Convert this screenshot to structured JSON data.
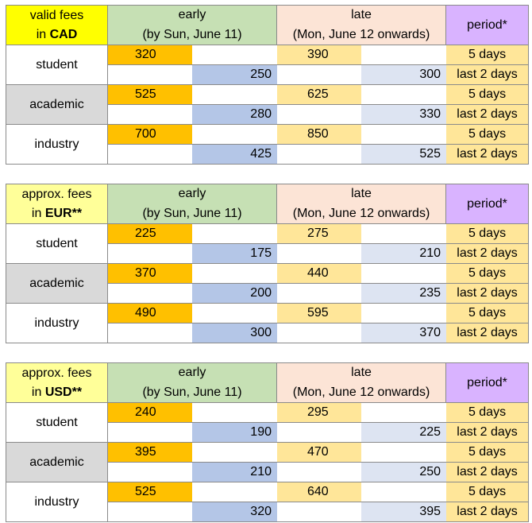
{
  "tables": [
    {
      "currency_line1": "valid fees",
      "currency_prefix": "in",
      "currency": "CAD",
      "early_label": "early",
      "early_sub": "(by Sun, June 11)",
      "late_label": "late",
      "late_sub": "(Mon, June 12 onwards)",
      "period_label": "period*",
      "rows": [
        {
          "category": "student",
          "early_5": "320",
          "early_2": "250",
          "late_5": "390",
          "late_2": "300",
          "period_5": "5 days",
          "period_2": "last 2 days"
        },
        {
          "category": "academic",
          "early_5": "525",
          "early_2": "280",
          "late_5": "625",
          "late_2": "330",
          "period_5": "5 days",
          "period_2": "last 2 days"
        },
        {
          "category": "industry",
          "early_5": "700",
          "early_2": "425",
          "late_5": "850",
          "late_2": "525",
          "period_5": "5 days",
          "period_2": "last 2 days"
        }
      ]
    },
    {
      "currency_line1": "approx. fees",
      "currency_prefix": "in",
      "currency": "EUR**",
      "early_label": "early",
      "early_sub": "(by Sun, June 11)",
      "late_label": "late",
      "late_sub": "(Mon, June 12 onwards)",
      "period_label": "period*",
      "rows": [
        {
          "category": "student",
          "early_5": "225",
          "early_2": "175",
          "late_5": "275",
          "late_2": "210",
          "period_5": "5 days",
          "period_2": "last 2 days"
        },
        {
          "category": "academic",
          "early_5": "370",
          "early_2": "200",
          "late_5": "440",
          "late_2": "235",
          "period_5": "5 days",
          "period_2": "last 2 days"
        },
        {
          "category": "industry",
          "early_5": "490",
          "early_2": "300",
          "late_5": "595",
          "late_2": "370",
          "period_5": "5 days",
          "period_2": "last 2 days"
        }
      ]
    },
    {
      "currency_line1": "approx. fees",
      "currency_prefix": "in",
      "currency": "USD**",
      "early_label": "early",
      "early_sub": "(by Sun, June 11)",
      "late_label": "late",
      "late_sub": "(Mon, June 12 onwards)",
      "period_label": "period*",
      "rows": [
        {
          "category": "student",
          "early_5": "240",
          "early_2": "190",
          "late_5": "295",
          "late_2": "225",
          "period_5": "5 days",
          "period_2": "last 2 days"
        },
        {
          "category": "academic",
          "early_5": "395",
          "early_2": "210",
          "late_5": "470",
          "late_2": "250",
          "period_5": "5 days",
          "period_2": "last 2 days"
        },
        {
          "category": "industry",
          "early_5": "525",
          "early_2": "320",
          "late_5": "640",
          "late_2": "395",
          "period_5": "5 days",
          "period_2": "last 2 days"
        }
      ]
    }
  ]
}
